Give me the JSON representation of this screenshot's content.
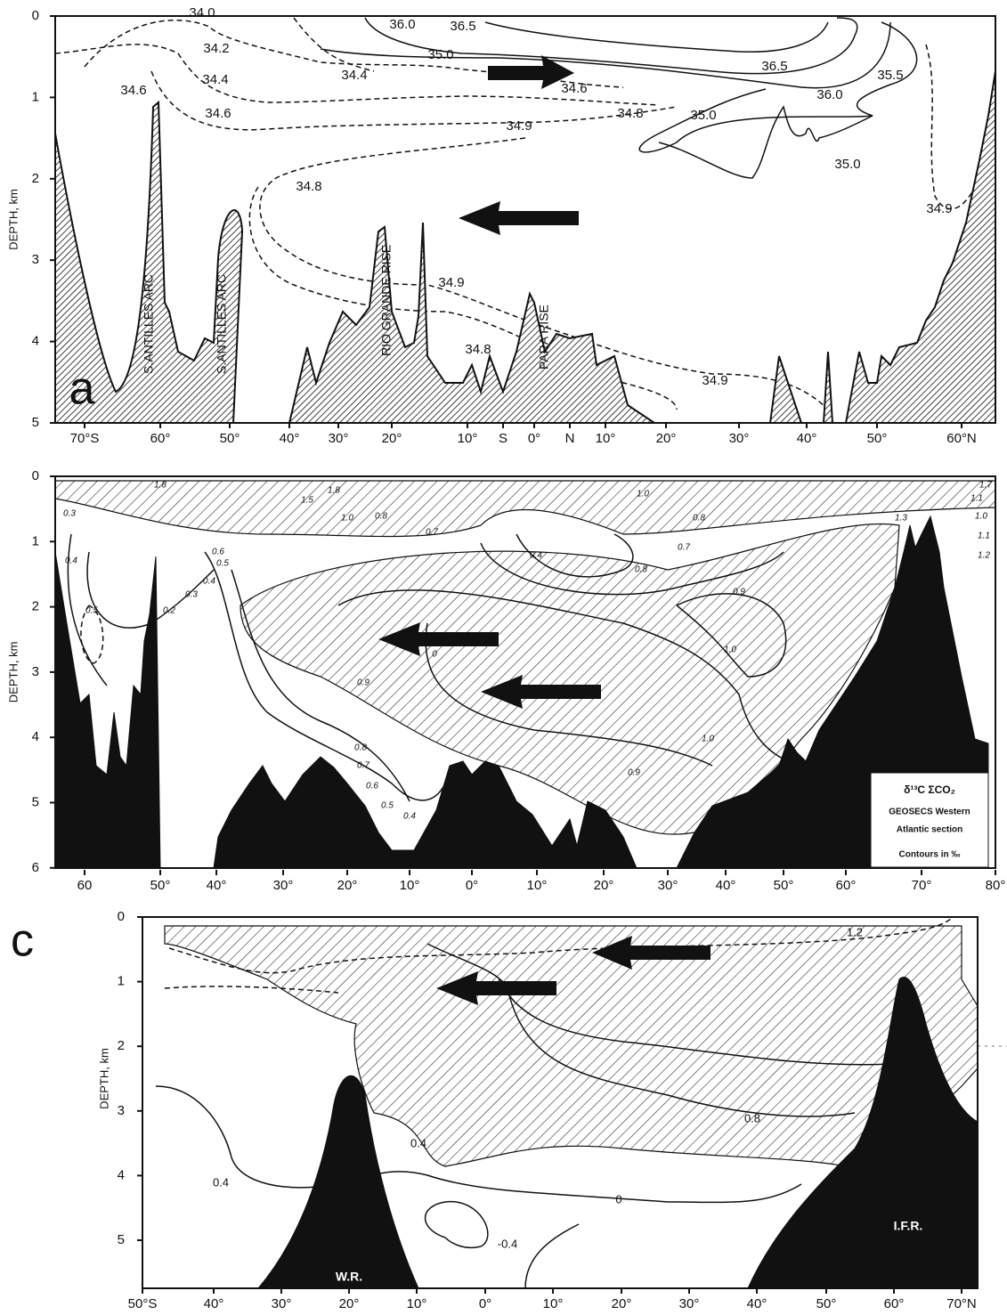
{
  "panels": [
    {
      "label": "a",
      "y_axis_title": "DEPTH, km",
      "yticks": [
        0,
        1,
        2,
        3,
        4,
        5
      ],
      "xticks": [
        "70°S",
        "60°",
        "50°",
        "40°",
        "30°",
        "20°",
        "10°",
        "S",
        "0°",
        "N",
        "10°",
        "20°",
        "30°",
        "40°",
        "50°",
        "60°N"
      ],
      "contour_labels": [
        "34.0",
        "36.0",
        "36.5",
        "34.2",
        "35.0",
        "36.5",
        "35.5",
        "34.4",
        "34.4",
        "36.0",
        "34.6",
        "34.6",
        "35.0",
        "34.8",
        "34.6",
        "34.9",
        "35.0",
        "34.8",
        "34.9",
        "34.9",
        "34.8",
        "34.9"
      ],
      "feature_labels": [
        "S.ANTILLES ARC",
        "S.ANTILLES ARC",
        "RIO GRANDE RISE",
        "PARA RISE"
      ]
    },
    {
      "label": "b",
      "y_axis_title": "DEPTH, km",
      "yticks": [
        0,
        1,
        2,
        3,
        4,
        5,
        6
      ],
      "xticks": [
        "60",
        "50°",
        "40°",
        "30°",
        "20°",
        "10°",
        "0°",
        "10°",
        "20°",
        "30°",
        "40°",
        "50°",
        "60°",
        "70°",
        "80°"
      ],
      "contour_labels": [
        "1.8",
        "1.8",
        "1.5",
        "1.0",
        "0.8",
        "0.7",
        "0.3",
        "0.4",
        "0.6",
        "0.5",
        "0.4",
        "0.3",
        "0.2",
        "0.5",
        "0.4",
        "0.8",
        "0.7",
        "0.8",
        "1.0",
        "0.9",
        "1.0",
        "0.9",
        "0",
        "0.8",
        "0.7",
        "0.6",
        "0.5",
        "0.4",
        "1.0",
        "0.9",
        "1.3",
        "1.7",
        "1.1",
        "1.0",
        "1.1",
        "1.2"
      ],
      "legend": [
        "δ¹³C ΣCO₂",
        "GEOSECS Western",
        "Atlantic section",
        "Contours in ‰"
      ]
    },
    {
      "label": "c",
      "y_axis_title": "DEPTH, km",
      "yticks": [
        0,
        1,
        2,
        3,
        4,
        5
      ],
      "xticks": [
        "50°S",
        "40°",
        "30°",
        "20°",
        "10°",
        "0°",
        "10°",
        "20°",
        "30°",
        "40°",
        "50°",
        "60°",
        "70°N"
      ],
      "contour_labels": [
        "1.2",
        "0.4",
        "0.8",
        "0.4",
        "0",
        "-0.4"
      ],
      "feature_labels": [
        "W.R.",
        "I.F.R."
      ]
    }
  ]
}
